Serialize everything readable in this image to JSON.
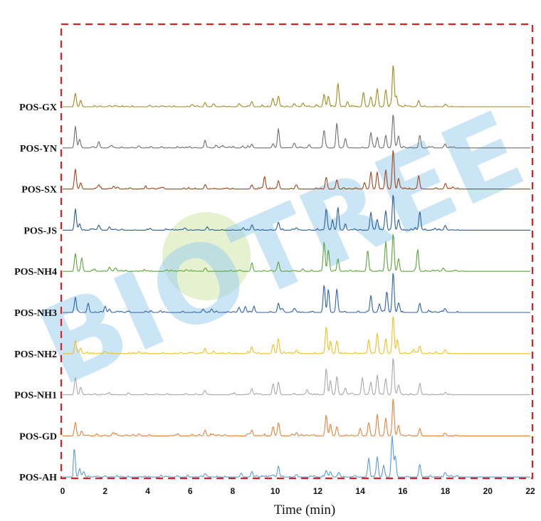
{
  "chart_data": {
    "type": "line",
    "subtype": "stacked-chromatograms",
    "xlabel": "Time (min)",
    "xlim": [
      0,
      22
    ],
    "x_ticks": [
      "0",
      "2",
      "4",
      "6",
      "8",
      "10",
      "12",
      "14",
      "16",
      "18",
      "20",
      "22"
    ],
    "grid": false,
    "legend": "series labels at left of each trace",
    "watermark": "BIOTREE",
    "highlight_box": {
      "style": "dashed",
      "color": "#e02020"
    },
    "series": [
      {
        "name": "POS-GX",
        "color": "#a08a1e",
        "peaks": [
          [
            0.6,
            0.3
          ],
          [
            0.85,
            0.12
          ],
          [
            2.2,
            0.03
          ],
          [
            6.7,
            0.1
          ],
          [
            7.1,
            0.07
          ],
          [
            8.3,
            0.05
          ],
          [
            8.9,
            0.12
          ],
          [
            9.9,
            0.18
          ],
          [
            10.15,
            0.24
          ],
          [
            10.9,
            0.06
          ],
          [
            11.3,
            0.08
          ],
          [
            12.3,
            0.3
          ],
          [
            12.5,
            0.25
          ],
          [
            12.95,
            0.55
          ],
          [
            13.4,
            0.12
          ],
          [
            14.15,
            0.35
          ],
          [
            14.5,
            0.22
          ],
          [
            14.8,
            0.42
          ],
          [
            15.2,
            0.4
          ],
          [
            15.55,
            1.0
          ],
          [
            15.7,
            0.25
          ],
          [
            16.75,
            0.15
          ],
          [
            18.0,
            0.06
          ]
        ]
      },
      {
        "name": "POS-YN",
        "color": "#6e6e6e",
        "peaks": [
          [
            0.6,
            0.5
          ],
          [
            0.8,
            0.2
          ],
          [
            1.7,
            0.15
          ],
          [
            2.3,
            0.06
          ],
          [
            3.6,
            0.04
          ],
          [
            6.7,
            0.15
          ],
          [
            8.9,
            0.08
          ],
          [
            9.9,
            0.1
          ],
          [
            10.15,
            0.42
          ],
          [
            10.9,
            0.1
          ],
          [
            11.6,
            0.08
          ],
          [
            12.3,
            0.4
          ],
          [
            12.9,
            0.55
          ],
          [
            13.3,
            0.22
          ],
          [
            14.5,
            0.35
          ],
          [
            14.8,
            0.25
          ],
          [
            15.2,
            0.3
          ],
          [
            15.55,
            0.8
          ],
          [
            15.8,
            0.28
          ],
          [
            16.8,
            0.3
          ],
          [
            18.0,
            0.06
          ]
        ]
      },
      {
        "name": "POS-SX",
        "color": "#a0461e",
        "peaks": [
          [
            0.6,
            0.45
          ],
          [
            0.85,
            0.15
          ],
          [
            1.7,
            0.1
          ],
          [
            2.4,
            0.07
          ],
          [
            6.7,
            0.08
          ],
          [
            8.9,
            0.1
          ],
          [
            9.5,
            0.3
          ],
          [
            10.15,
            0.2
          ],
          [
            11.0,
            0.1
          ],
          [
            12.4,
            0.28
          ],
          [
            12.9,
            0.22
          ],
          [
            14.2,
            0.12
          ],
          [
            14.5,
            0.38
          ],
          [
            14.8,
            0.4
          ],
          [
            15.2,
            0.45
          ],
          [
            15.55,
            0.9
          ],
          [
            15.8,
            0.25
          ],
          [
            16.75,
            0.32
          ],
          [
            18.0,
            0.12
          ]
        ]
      },
      {
        "name": "POS-JS",
        "color": "#2a5d96",
        "peaks": [
          [
            0.6,
            0.5
          ],
          [
            0.8,
            0.15
          ],
          [
            1.7,
            0.12
          ],
          [
            2.2,
            0.08
          ],
          [
            6.8,
            0.08
          ],
          [
            8.5,
            0.06
          ],
          [
            8.9,
            0.1
          ],
          [
            10.15,
            0.18
          ],
          [
            11.0,
            0.06
          ],
          [
            12.4,
            0.5
          ],
          [
            12.7,
            0.2
          ],
          [
            12.95,
            0.52
          ],
          [
            13.3,
            0.15
          ],
          [
            14.5,
            0.42
          ],
          [
            14.8,
            0.25
          ],
          [
            15.2,
            0.45
          ],
          [
            15.55,
            0.85
          ],
          [
            15.8,
            0.25
          ],
          [
            16.8,
            0.42
          ],
          [
            18.0,
            0.1
          ]
        ]
      },
      {
        "name": "POS-NH4",
        "color": "#5ba53a",
        "peaks": [
          [
            0.6,
            0.42
          ],
          [
            0.9,
            0.3
          ],
          [
            2.2,
            0.1
          ],
          [
            2.5,
            0.06
          ],
          [
            6.7,
            0.07
          ],
          [
            8.9,
            0.2
          ],
          [
            10.15,
            0.22
          ],
          [
            11.3,
            0.06
          ],
          [
            12.3,
            0.7
          ],
          [
            12.5,
            0.5
          ],
          [
            12.95,
            0.3
          ],
          [
            14.35,
            0.5
          ],
          [
            15.2,
            0.7
          ],
          [
            15.55,
            0.9
          ],
          [
            15.8,
            0.3
          ],
          [
            16.7,
            0.5
          ],
          [
            17.9,
            0.08
          ]
        ]
      },
      {
        "name": "POS-NH3",
        "color": "#2b63b0",
        "peaks": [
          [
            0.6,
            0.35
          ],
          [
            1.2,
            0.22
          ],
          [
            2.0,
            0.15
          ],
          [
            2.2,
            0.08
          ],
          [
            6.6,
            0.08
          ],
          [
            7.0,
            0.06
          ],
          [
            8.3,
            0.1
          ],
          [
            8.6,
            0.12
          ],
          [
            9.0,
            0.14
          ],
          [
            10.15,
            0.22
          ],
          [
            10.9,
            0.1
          ],
          [
            12.3,
            0.65
          ],
          [
            12.5,
            0.55
          ],
          [
            12.9,
            0.55
          ],
          [
            14.5,
            0.4
          ],
          [
            14.9,
            0.2
          ],
          [
            15.25,
            0.5
          ],
          [
            15.55,
            0.95
          ],
          [
            15.8,
            0.22
          ],
          [
            16.8,
            0.22
          ],
          [
            18.0,
            0.08
          ]
        ]
      },
      {
        "name": "POS-NH2",
        "color": "#f0c020",
        "peaks": [
          [
            0.6,
            0.3
          ],
          [
            0.85,
            0.1
          ],
          [
            3.6,
            0.05
          ],
          [
            6.7,
            0.12
          ],
          [
            7.1,
            0.06
          ],
          [
            8.9,
            0.14
          ],
          [
            9.9,
            0.22
          ],
          [
            10.15,
            0.35
          ],
          [
            11.0,
            0.08
          ],
          [
            12.4,
            0.62
          ],
          [
            12.6,
            0.3
          ],
          [
            12.9,
            0.3
          ],
          [
            14.4,
            0.3
          ],
          [
            14.8,
            0.48
          ],
          [
            15.2,
            0.35
          ],
          [
            15.55,
            0.9
          ],
          [
            15.75,
            0.32
          ],
          [
            16.5,
            0.1
          ],
          [
            16.8,
            0.18
          ],
          [
            18.0,
            0.08
          ]
        ]
      },
      {
        "name": "POS-NH1",
        "color": "#a8a8a8",
        "peaks": [
          [
            0.6,
            0.38
          ],
          [
            0.85,
            0.15
          ],
          [
            6.7,
            0.1
          ],
          [
            8.9,
            0.15
          ],
          [
            9.9,
            0.25
          ],
          [
            10.15,
            0.3
          ],
          [
            11.5,
            0.12
          ],
          [
            12.4,
            0.62
          ],
          [
            12.6,
            0.3
          ],
          [
            12.9,
            0.42
          ],
          [
            13.3,
            0.16
          ],
          [
            14.1,
            0.4
          ],
          [
            14.5,
            0.28
          ],
          [
            14.8,
            0.45
          ],
          [
            15.2,
            0.38
          ],
          [
            15.55,
            0.88
          ],
          [
            15.8,
            0.22
          ],
          [
            16.8,
            0.25
          ],
          [
            18.0,
            0.06
          ]
        ]
      },
      {
        "name": "POS-GD",
        "color": "#e8823a",
        "peaks": [
          [
            0.6,
            0.32
          ],
          [
            0.9,
            0.1
          ],
          [
            1.6,
            0.05
          ],
          [
            2.4,
            0.04
          ],
          [
            3.6,
            0.04
          ],
          [
            6.7,
            0.12
          ],
          [
            8.9,
            0.14
          ],
          [
            9.9,
            0.22
          ],
          [
            10.15,
            0.28
          ],
          [
            11.0,
            0.08
          ],
          [
            12.4,
            0.48
          ],
          [
            12.6,
            0.28
          ],
          [
            12.9,
            0.22
          ],
          [
            14.0,
            0.18
          ],
          [
            14.4,
            0.3
          ],
          [
            14.8,
            0.5
          ],
          [
            15.2,
            0.42
          ],
          [
            15.55,
            0.85
          ],
          [
            15.8,
            0.25
          ],
          [
            16.8,
            0.18
          ],
          [
            18.0,
            0.06
          ]
        ]
      },
      {
        "name": "POS-AH",
        "color": "#5b9bd5",
        "peaks": [
          [
            0.55,
            0.68
          ],
          [
            0.8,
            0.2
          ],
          [
            1.0,
            0.12
          ],
          [
            6.7,
            0.08
          ],
          [
            8.4,
            0.08
          ],
          [
            8.9,
            0.1
          ],
          [
            10.15,
            0.26
          ],
          [
            11.0,
            0.06
          ],
          [
            12.4,
            0.16
          ],
          [
            12.6,
            0.12
          ],
          [
            13.0,
            0.1
          ],
          [
            14.4,
            0.42
          ],
          [
            14.8,
            0.48
          ],
          [
            15.1,
            0.28
          ],
          [
            15.5,
            0.95
          ],
          [
            15.65,
            0.5
          ],
          [
            16.8,
            0.3
          ],
          [
            18.0,
            0.1
          ]
        ]
      }
    ]
  }
}
